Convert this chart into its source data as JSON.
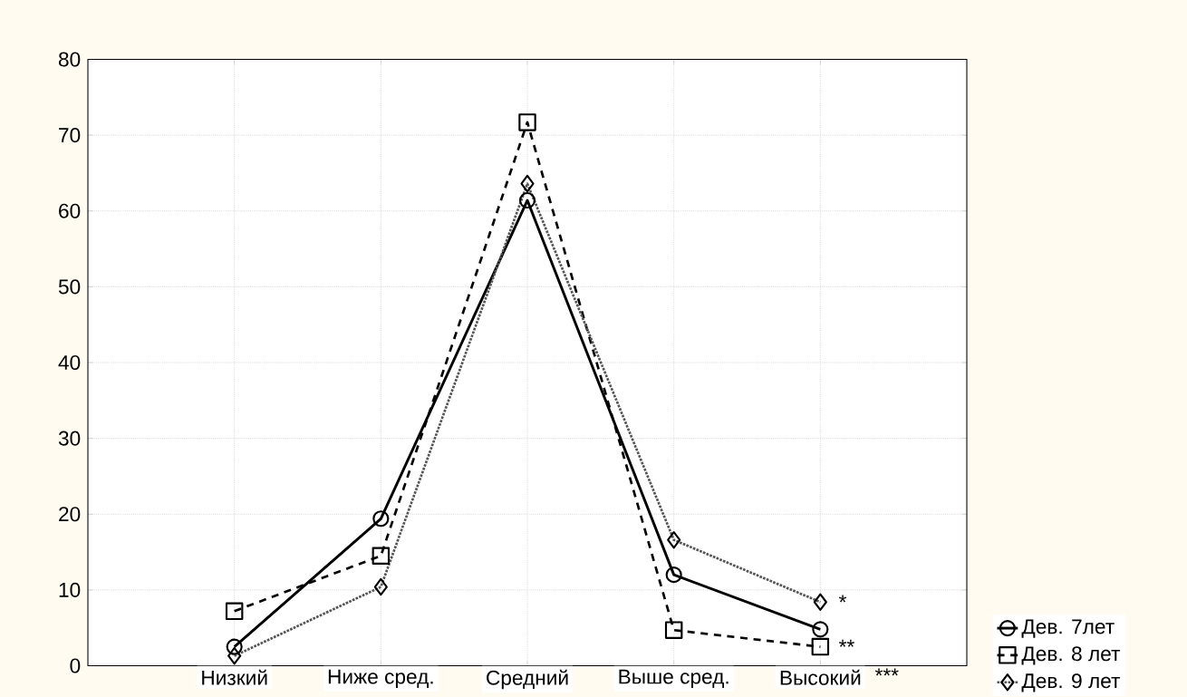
{
  "chart_data": {
    "type": "line",
    "categories": [
      "Низкий",
      "Ниже сред.",
      "Средний",
      "Выше сред.",
      "Высокий"
    ],
    "series": [
      {
        "name": "Дев. 7лет",
        "color": "#000000",
        "marker": "circle",
        "line_style": "solid",
        "values": [
          2.5,
          19.4,
          61.4,
          12.0,
          4.8
        ]
      },
      {
        "name": "Дев. 8 лет",
        "color": "#000000",
        "marker": "square",
        "line_style": "dashed",
        "values": [
          7.2,
          14.5,
          71.7,
          4.7,
          2.5
        ]
      },
      {
        "name": "Дев. 9 лет",
        "color": "#555555",
        "marker": "diamond",
        "line_style": "dotted",
        "values": [
          1.3,
          10.4,
          63.6,
          16.6,
          8.4
        ]
      }
    ],
    "ylim": [
      0,
      80
    ],
    "yticks": [
      0,
      10,
      20,
      30,
      40,
      50,
      60,
      70,
      80
    ],
    "grid": true,
    "legend": "bottom right",
    "annotations": [
      {
        "text": "*",
        "x": "Высокий",
        "y": 8.4
      },
      {
        "text": "**",
        "x": "Высокий",
        "y": 2.5
      },
      "***"
    ]
  }
}
